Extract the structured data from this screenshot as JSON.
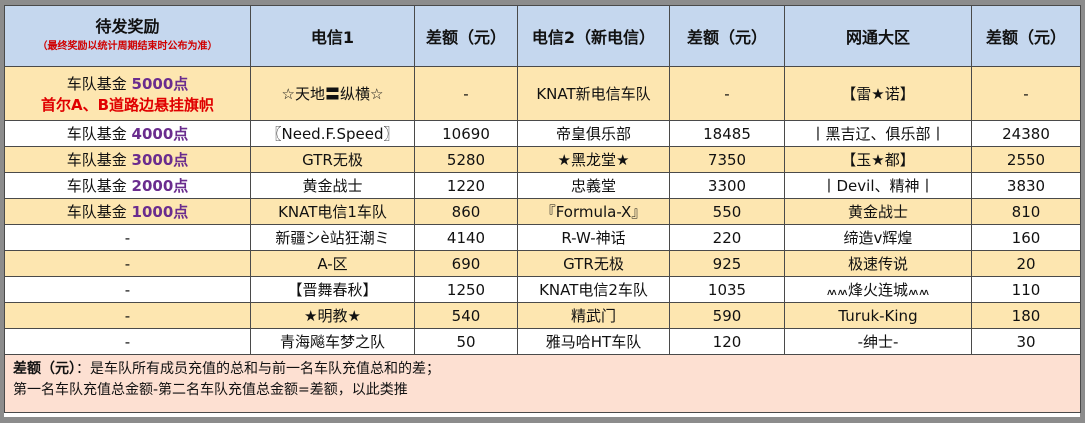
{
  "header": {
    "rewards_title": "待发奖励",
    "rewards_note": "（最终奖励以统计周期结束时公布为准）",
    "col_telecom1": "电信1",
    "col_diff1": "差额（元）",
    "col_telecom2": "电信2（新电信）",
    "col_diff2": "差额（元）",
    "col_netcom": "网通大区",
    "col_diff3": "差额（元）"
  },
  "rows": [
    {
      "reward_prefix": "车队基金 ",
      "reward_amount": "5000点",
      "reward_extra": "首尔A、B道路边悬挂旗帜",
      "t1": "☆天地〓纵横☆",
      "d1": "-",
      "t2": "KNAT新电信车队",
      "d2": "-",
      "t3": "【雷★诺】",
      "d3": "-"
    },
    {
      "reward_prefix": "车队基金 ",
      "reward_amount": "4000点",
      "reward_extra": "",
      "t1": "〖Need.F.Speed〗",
      "d1": "10690",
      "t2": "帝皇俱乐部",
      "d2": "18485",
      "t3": "丨黑吉辽、俱乐部丨",
      "d3": "24380"
    },
    {
      "reward_prefix": "车队基金 ",
      "reward_amount": "3000点",
      "reward_extra": "",
      "t1": "GTR无极",
      "d1": "5280",
      "t2": "★黑龙堂★",
      "d2": "7350",
      "t3": "【玉★都】",
      "d3": "2550"
    },
    {
      "reward_prefix": "车队基金 ",
      "reward_amount": "2000点",
      "reward_extra": "",
      "t1": "黄金战士",
      "d1": "1220",
      "t2": "忠義堂",
      "d2": "3300",
      "t3": "丨Devil、精神丨",
      "d3": "3830"
    },
    {
      "reward_prefix": "车队基金 ",
      "reward_amount": "1000点",
      "reward_extra": "",
      "t1": "KNAT电信1车队",
      "d1": "860",
      "t2": "『Formula-X』",
      "d2": "550",
      "t3": "黄金战士",
      "d3": "810"
    },
    {
      "reward_prefix": "-",
      "reward_amount": "",
      "reward_extra": "",
      "t1": "新疆シè站狂潮ミ",
      "d1": "4140",
      "t2": "R-W-神话",
      "d2": "220",
      "t3": "缔造v辉煌",
      "d3": "160"
    },
    {
      "reward_prefix": "-",
      "reward_amount": "",
      "reward_extra": "",
      "t1": "A-区",
      "d1": "690",
      "t2": "GTR无极",
      "d2": "925",
      "t3": "极速传说",
      "d3": "20"
    },
    {
      "reward_prefix": "-",
      "reward_amount": "",
      "reward_extra": "",
      "t1": "【晋舞春秋】",
      "d1": "1250",
      "t2": "KNAT电信2车队",
      "d2": "1035",
      "t3": "៳៳烽火连城៳៳",
      "d3": "110"
    },
    {
      "reward_prefix": "-",
      "reward_amount": "",
      "reward_extra": "",
      "t1": "★明教★",
      "d1": "540",
      "t2": "精武门",
      "d2": "590",
      "t3": "Turuk-King",
      "d3": "180"
    },
    {
      "reward_prefix": "-",
      "reward_amount": "",
      "reward_extra": "",
      "t1": "青海飚车梦之队",
      "d1": "50",
      "t2": "雅马哈HT车队",
      "d2": "120",
      "t3": "-绅士-",
      "d3": "30"
    }
  ],
  "footer": {
    "note_label": "差额（元）",
    "note_line1": "：是车队所有成员充值的总和与前一名车队充值总和的差；",
    "note_line2": "第一名车队充值总金额-第二名车队充值总金额=差额，以此类推"
  },
  "colors": {
    "header_bg": "#c5d7ee",
    "beige_row": "#fde6b0",
    "footer_bg": "#fde0d2",
    "fund_amount": "#6a2c8e",
    "flag_text": "#e00000"
  }
}
